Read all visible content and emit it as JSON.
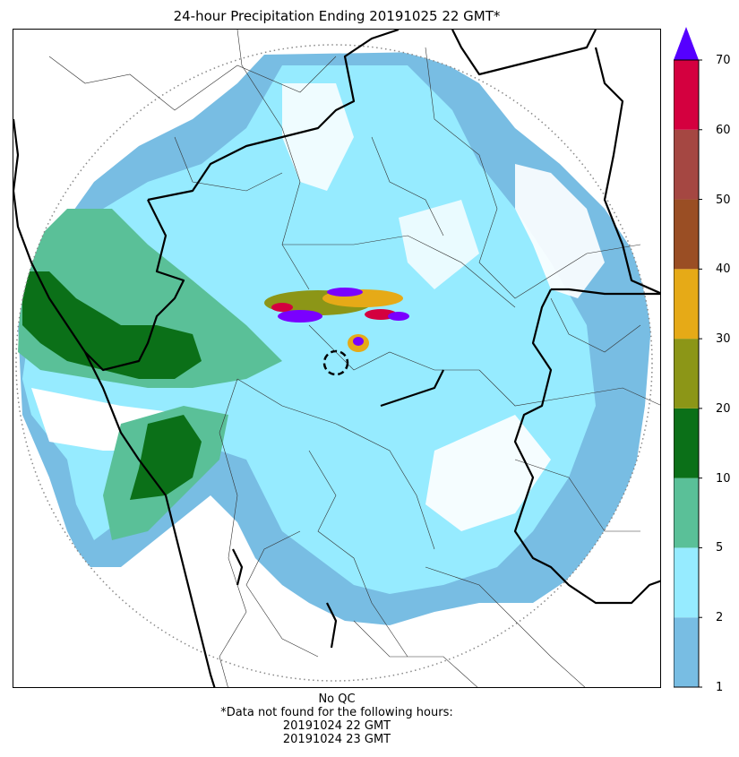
{
  "title": "24-hour Precipitation Ending 20191025 22 GMT*",
  "colorbar": {
    "ticks": [
      "1",
      "2",
      "5",
      "10",
      "20",
      "30",
      "40",
      "50",
      "60",
      "70"
    ],
    "colors": [
      "#78bde3",
      "#96ebff",
      "#5ac098",
      "#0b7018",
      "#8c9617",
      "#e6aa17",
      "#9a4e24",
      "#a54742",
      "#d4003f"
    ],
    "extend_color": "#5500ff"
  },
  "map": {
    "colors": {
      "light_blue": "#78bde3",
      "cyan": "#96ebff",
      "light_green": "#5ac098",
      "dark_green": "#0b7018",
      "olive": "#8c9617",
      "gold": "#e6aa17",
      "purple": "#7a00ff",
      "red": "#d4003f"
    }
  },
  "footer": {
    "qc": "No QC",
    "note": "*Data not found for the following hours:",
    "hours": [
      "20191024 22 GMT",
      "20191024 23 GMT"
    ]
  }
}
